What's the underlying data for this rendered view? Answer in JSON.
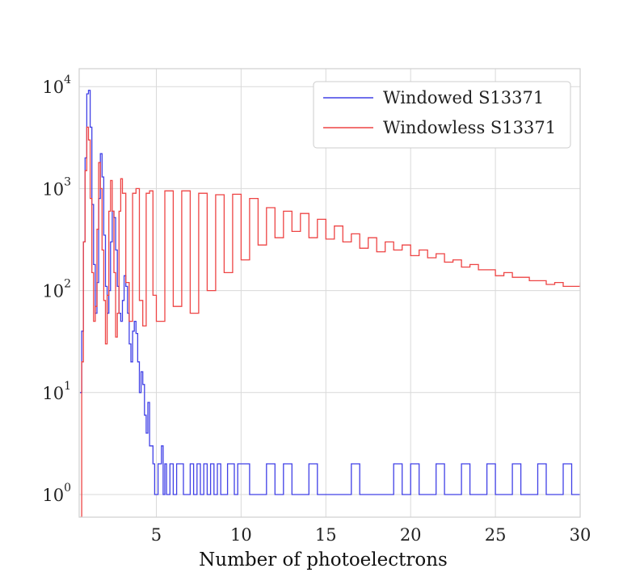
{
  "chart_data": {
    "type": "line",
    "style": "step",
    "title": "",
    "xlabel": "Number of photoelectrons",
    "ylabel": "",
    "xlim": [
      0.45,
      30
    ],
    "ylim": [
      0.6,
      15000
    ],
    "yscale": "log",
    "grid": true,
    "legend_position": "top-right",
    "x_ticks": [
      {
        "value": 5,
        "label": "5"
      },
      {
        "value": 10,
        "label": "10"
      },
      {
        "value": 15,
        "label": "15"
      },
      {
        "value": 20,
        "label": "20"
      },
      {
        "value": 25,
        "label": "25"
      },
      {
        "value": 30,
        "label": "30"
      }
    ],
    "y_ticks": [
      {
        "value": 1,
        "base": "10",
        "exp": "0"
      },
      {
        "value": 10,
        "base": "10",
        "exp": "1"
      },
      {
        "value": 100,
        "base": "10",
        "exp": "2"
      },
      {
        "value": 1000,
        "base": "10",
        "exp": "3"
      },
      {
        "value": 10000,
        "base": "10",
        "exp": "4"
      }
    ],
    "series": [
      {
        "name": "Windowed S13371",
        "color": "#4040e6",
        "x": [
          0.5,
          0.6,
          0.7,
          0.8,
          0.9,
          1.0,
          1.1,
          1.2,
          1.3,
          1.4,
          1.5,
          1.6,
          1.7,
          1.8,
          1.9,
          2.0,
          2.1,
          2.2,
          2.3,
          2.4,
          2.5,
          2.6,
          2.7,
          2.8,
          2.9,
          3.0,
          3.1,
          3.2,
          3.3,
          3.4,
          3.5,
          3.6,
          3.7,
          3.8,
          3.9,
          4.0,
          4.1,
          4.2,
          4.3,
          4.4,
          4.5,
          4.6,
          4.7,
          4.8,
          4.9,
          5.0,
          5.1,
          5.2,
          5.3,
          5.4,
          5.5,
          5.6,
          5.7,
          5.8,
          5.9,
          6.0,
          6.2,
          6.4,
          6.6,
          6.8,
          7.0,
          7.2,
          7.4,
          7.6,
          7.8,
          8.0,
          8.2,
          8.4,
          8.6,
          8.8,
          9.0,
          9.2,
          9.4,
          9.6,
          9.8,
          10.0,
          10.5,
          11.0,
          11.5,
          12.0,
          12.5,
          13.0,
          13.5,
          14.0,
          14.5,
          15.0,
          15.5,
          16.0,
          16.5,
          17.0,
          17.5,
          18.0,
          18.5,
          19.0,
          19.5,
          20.0,
          20.5,
          21.0,
          21.5,
          22.0,
          22.5,
          23.0,
          23.5,
          24.0,
          24.5,
          25.0,
          25.5,
          26.0,
          26.5,
          27.0,
          27.5,
          28.0,
          28.5,
          29.0,
          29.5,
          30.0
        ],
        "values": [
          10,
          40,
          300,
          2000,
          8500,
          9200,
          4000,
          700,
          180,
          60,
          120,
          800,
          2200,
          1300,
          350,
          110,
          60,
          100,
          300,
          600,
          520,
          250,
          110,
          60,
          50,
          80,
          140,
          110,
          60,
          30,
          20,
          40,
          50,
          38,
          20,
          10,
          16,
          12,
          6,
          4,
          8,
          3,
          3,
          2,
          1,
          1,
          2,
          2,
          3,
          1,
          2,
          1,
          1,
          2,
          2,
          1,
          2,
          2,
          1,
          1,
          2,
          1,
          2,
          1,
          2,
          1,
          2,
          1,
          2,
          1,
          1,
          2,
          2,
          1,
          2,
          2,
          1,
          1,
          2,
          1,
          2,
          1,
          1,
          2,
          1,
          1,
          1,
          1,
          2,
          1,
          1,
          1,
          1,
          2,
          1,
          2,
          1,
          1,
          2,
          1,
          1,
          2,
          1,
          1,
          2,
          1,
          1,
          2,
          1,
          1,
          2,
          1,
          1,
          2,
          1,
          1
        ]
      },
      {
        "name": "Windowless S13371",
        "color": "#ee4444",
        "x": [
          0.5,
          0.6,
          0.7,
          0.8,
          0.9,
          1.0,
          1.1,
          1.2,
          1.3,
          1.4,
          1.5,
          1.6,
          1.7,
          1.8,
          1.9,
          2.0,
          2.1,
          2.2,
          2.3,
          2.4,
          2.5,
          2.6,
          2.7,
          2.8,
          2.9,
          3.0,
          3.2,
          3.4,
          3.6,
          3.8,
          4.0,
          4.2,
          4.4,
          4.6,
          4.8,
          5.0,
          5.5,
          6.0,
          6.5,
          7.0,
          7.5,
          8.0,
          8.5,
          9.0,
          9.5,
          10.0,
          10.5,
          11.0,
          11.5,
          12.0,
          12.5,
          13.0,
          13.5,
          14.0,
          14.5,
          15.0,
          15.5,
          16.0,
          16.5,
          17.0,
          17.5,
          18.0,
          18.5,
          19.0,
          19.5,
          20.0,
          20.5,
          21.0,
          21.5,
          22.0,
          22.5,
          23.0,
          23.5,
          24.0,
          24.5,
          25.0,
          25.5,
          26.0,
          26.5,
          27.0,
          27.5,
          28.0,
          28.5,
          29.0,
          29.5,
          30.0
        ],
        "values": [
          0.6,
          20,
          300,
          1500,
          4000,
          3000,
          800,
          150,
          50,
          70,
          400,
          1800,
          1000,
          250,
          80,
          30,
          90,
          600,
          1200,
          600,
          150,
          35,
          60,
          600,
          1250,
          900,
          120,
          50,
          900,
          1000,
          80,
          45,
          900,
          950,
          90,
          50,
          950,
          70,
          950,
          60,
          900,
          100,
          870,
          150,
          880,
          200,
          800,
          280,
          650,
          330,
          600,
          380,
          570,
          330,
          500,
          320,
          430,
          300,
          360,
          260,
          330,
          240,
          300,
          250,
          280,
          220,
          250,
          210,
          230,
          190,
          200,
          170,
          180,
          160,
          160,
          140,
          150,
          135,
          135,
          125,
          125,
          115,
          120,
          110,
          110,
          120
        ]
      }
    ]
  }
}
